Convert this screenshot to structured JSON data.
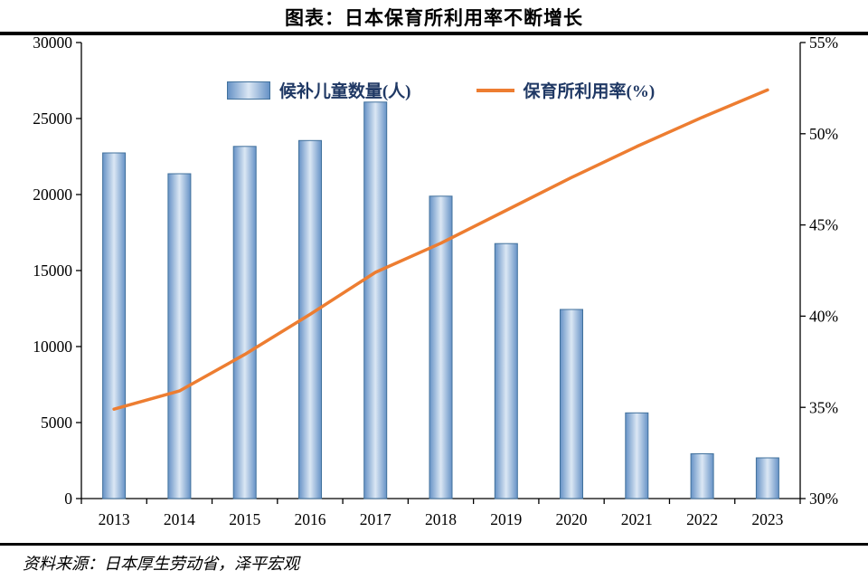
{
  "title": "图表：日本保育所利用率不断增长",
  "source": "资料来源：日本厚生劳动省，泽平宏观",
  "legend": {
    "bars_label": "候补儿童数量(人)",
    "line_label": "保育所利用率(%)"
  },
  "colors": {
    "bar_edge": "#6692c6",
    "bar_center": "#dbe7f4",
    "bar_stroke": "#41719c",
    "line": "#ED7D31",
    "legend_text": "#1F3864"
  },
  "chart_data": {
    "type": "bar",
    "title": "图表：日本保育所利用率不断增长",
    "categories": [
      "2013",
      "2014",
      "2015",
      "2016",
      "2017",
      "2018",
      "2019",
      "2020",
      "2021",
      "2022",
      "2023"
    ],
    "series": [
      {
        "name": "候补儿童数量(人)",
        "type": "bar",
        "axis": "left",
        "values": [
          22741,
          21371,
          23167,
          23553,
          26081,
          19895,
          16772,
          12439,
          5634,
          2944,
          2680
        ]
      },
      {
        "name": "保育所利用率(%)",
        "type": "line",
        "axis": "right",
        "values": [
          34.9,
          35.9,
          37.9,
          40.1,
          42.4,
          44.0,
          45.8,
          47.6,
          49.3,
          50.9,
          52.4
        ]
      }
    ],
    "left_axis": {
      "min": 0,
      "max": 30000,
      "step": 5000
    },
    "right_axis": {
      "min": 30,
      "max": 55,
      "step": 5,
      "suffix": "%"
    },
    "grid": false,
    "legend_position": "top"
  }
}
